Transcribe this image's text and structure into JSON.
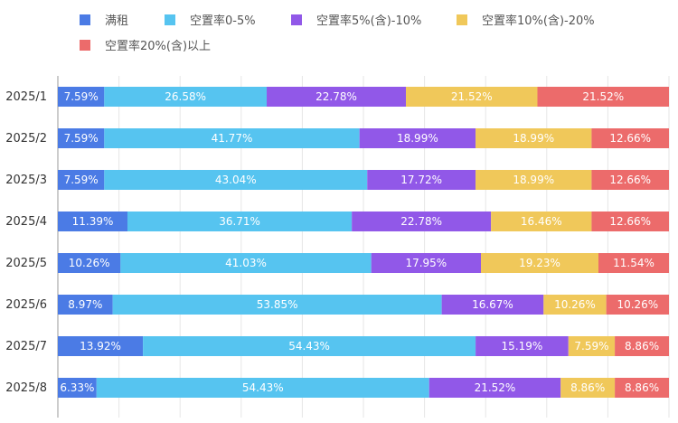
{
  "chart_data": {
    "type": "bar",
    "orientation": "horizontal",
    "stacked": true,
    "legend_position": "top",
    "grid": true,
    "xlim": [
      0,
      100
    ],
    "categories": [
      "2025/1",
      "2025/2",
      "2025/3",
      "2025/4",
      "2025/5",
      "2025/6",
      "2025/7",
      "2025/8"
    ],
    "series": [
      {
        "name": "满租",
        "color": "#4B7BE5",
        "values": [
          7.59,
          7.59,
          7.59,
          11.39,
          10.26,
          8.97,
          13.92,
          6.33
        ],
        "labels": [
          "7.59%",
          "7.59%",
          "7.59%",
          "11.39%",
          "10.26%",
          "8.97%",
          "13.92%",
          "6.33%"
        ]
      },
      {
        "name": "空置率0-5%",
        "color": "#56C4F0",
        "values": [
          26.58,
          41.77,
          43.04,
          36.71,
          41.03,
          53.85,
          54.43,
          54.43
        ],
        "labels": [
          "26.58%",
          "41.77%",
          "43.04%",
          "36.71%",
          "41.03%",
          "53.85%",
          "54.43%",
          "54.43%"
        ]
      },
      {
        "name": "空置率5%(含)-10%",
        "color": "#9158E8",
        "values": [
          22.78,
          18.99,
          17.72,
          22.78,
          17.95,
          16.67,
          15.19,
          21.52
        ],
        "labels": [
          "22.78%",
          "18.99%",
          "17.72%",
          "22.78%",
          "17.95%",
          "16.67%",
          "15.19%",
          "21.52%"
        ]
      },
      {
        "name": "空置率10%(含)-20%",
        "color": "#F0C85A",
        "values": [
          21.52,
          18.99,
          18.99,
          16.46,
          19.23,
          10.26,
          7.59,
          8.86
        ],
        "labels": [
          "21.52%",
          "18.99%",
          "18.99%",
          "16.46%",
          "19.23%",
          "10.26%",
          "7.59%",
          "8.86%"
        ]
      },
      {
        "name": "空置率20%(含)以上",
        "color": "#EC6B6B",
        "values": [
          21.52,
          12.66,
          12.66,
          12.66,
          11.54,
          10.26,
          8.86,
          8.86
        ],
        "labels": [
          "21.52%",
          "12.66%",
          "12.66%",
          "12.66%",
          "11.54%",
          "10.26%",
          "8.86%",
          "8.86%"
        ]
      }
    ]
  }
}
